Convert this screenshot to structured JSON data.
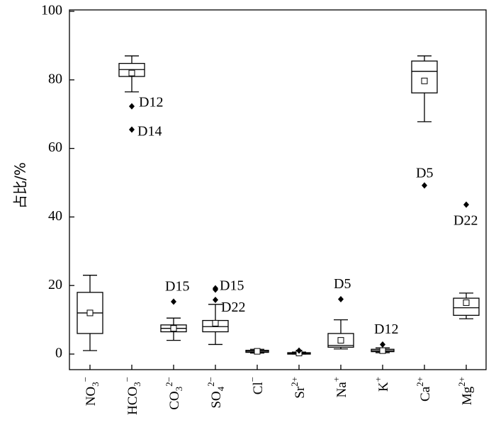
{
  "chart_data": {
    "type": "box",
    "ylabel": "占比/%",
    "ylim": [
      0,
      100
    ],
    "yticks": [
      0,
      20,
      40,
      60,
      80,
      100
    ],
    "grid": false,
    "categories": [
      {
        "base": "NO",
        "sub": "3",
        "sup": "−"
      },
      {
        "base": "HCO",
        "sub": "3",
        "sup": "−"
      },
      {
        "base": "CO",
        "sub": "3",
        "sup": "2−"
      },
      {
        "base": "SO",
        "sub": "4",
        "sup": "2−"
      },
      {
        "base": "Cl",
        "sub": "",
        "sup": "−"
      },
      {
        "base": "Sr",
        "sub": "",
        "sup": "2+"
      },
      {
        "base": "Na",
        "sub": "",
        "sup": "+"
      },
      {
        "base": "K",
        "sub": "",
        "sup": "+"
      },
      {
        "base": "Ca",
        "sub": "",
        "sup": "2+"
      },
      {
        "base": "Mg",
        "sub": "",
        "sup": "2+"
      }
    ],
    "boxes": [
      {
        "min": 1.0,
        "q1": 6.0,
        "median": 12.0,
        "q3": 18.0,
        "max": 23.0,
        "mean": 12.0,
        "outliers": []
      },
      {
        "min": 76.5,
        "q1": 81.0,
        "median": 83.0,
        "q3": 84.8,
        "max": 87.0,
        "mean": 82.0,
        "outliers": [
          {
            "value": 72.3,
            "label": "D12"
          },
          {
            "value": 65.5,
            "label": "D14"
          }
        ]
      },
      {
        "min": 4.0,
        "q1": 6.5,
        "median": 7.5,
        "q3": 8.5,
        "max": 10.5,
        "mean": 7.5,
        "outliers": [
          {
            "value": 15.3,
            "label": "D15"
          }
        ]
      },
      {
        "min": 2.8,
        "q1": 6.5,
        "median": 8.0,
        "q3": 9.8,
        "max": 14.5,
        "mean": 9.0,
        "outliers": [
          {
            "value": 19.2,
            "label": "D15"
          },
          {
            "value": 18.8,
            "label": ""
          },
          {
            "value": 15.8,
            "label": "D22"
          }
        ]
      },
      {
        "min": 0.3,
        "q1": 0.5,
        "median": 0.8,
        "q3": 1.1,
        "max": 1.4,
        "mean": 0.8,
        "outliers": []
      },
      {
        "min": 0.0,
        "q1": 0.1,
        "median": 0.2,
        "q3": 0.4,
        "max": 0.6,
        "mean": 0.3,
        "outliers": [
          {
            "value": 1.0,
            "label": ""
          }
        ]
      },
      {
        "min": 1.5,
        "q1": 2.0,
        "median": 2.5,
        "q3": 6.0,
        "max": 10.0,
        "mean": 4.0,
        "outliers": [
          {
            "value": 16.0,
            "label": "D5"
          }
        ]
      },
      {
        "min": 0.4,
        "q1": 0.7,
        "median": 1.0,
        "q3": 1.4,
        "max": 1.8,
        "mean": 1.0,
        "outliers": [
          {
            "value": 2.8,
            "label": "D12"
          }
        ]
      },
      {
        "min": 67.8,
        "q1": 76.2,
        "median": 82.5,
        "q3": 85.5,
        "max": 87.0,
        "mean": 79.7,
        "outliers": [
          {
            "value": 49.2,
            "label": "D5"
          }
        ]
      },
      {
        "min": 10.3,
        "q1": 11.3,
        "median": 13.5,
        "q3": 16.3,
        "max": 17.8,
        "mean": 15.0,
        "outliers": [
          {
            "value": 43.6,
            "label": "D22"
          }
        ]
      }
    ]
  }
}
